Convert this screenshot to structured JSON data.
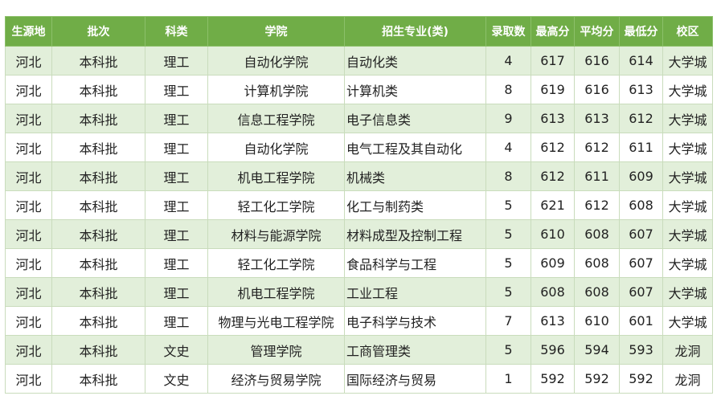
{
  "table": {
    "header": [
      "生源地",
      "批次",
      "科类",
      "学院",
      "招生专业(类)",
      "录取数",
      "最高分",
      "平均分",
      "最低分",
      "校区"
    ],
    "rows": [
      [
        "河北",
        "本科批",
        "理工",
        "自动化学院",
        "自动化类",
        4,
        617,
        616,
        614,
        "大学城"
      ],
      [
        "河北",
        "本科批",
        "理工",
        "计算机学院",
        "计算机类",
        8,
        619,
        616,
        613,
        "大学城"
      ],
      [
        "河北",
        "本科批",
        "理工",
        "信息工程学院",
        "电子信息类",
        9,
        613,
        613,
        612,
        "大学城"
      ],
      [
        "河北",
        "本科批",
        "理工",
        "自动化学院",
        "电气工程及其自动化",
        4,
        612,
        612,
        611,
        "大学城"
      ],
      [
        "河北",
        "本科批",
        "理工",
        "机电工程学院",
        "机械类",
        8,
        612,
        611,
        609,
        "大学城"
      ],
      [
        "河北",
        "本科批",
        "理工",
        "轻工化工学院",
        "化工与制药类",
        5,
        621,
        612,
        608,
        "大学城"
      ],
      [
        "河北",
        "本科批",
        "理工",
        "材料与能源学院",
        "材料成型及控制工程",
        5,
        610,
        608,
        607,
        "大学城"
      ],
      [
        "河北",
        "本科批",
        "理工",
        "轻工化工学院",
        "食品科学与工程",
        5,
        609,
        608,
        607,
        "大学城"
      ],
      [
        "河北",
        "本科批",
        "理工",
        "机电工程学院",
        "工业工程",
        5,
        608,
        608,
        607,
        "大学城"
      ],
      [
        "河北",
        "本科批",
        "理工",
        "物理与光电工程学院",
        "电子科学与技术",
        7,
        613,
        610,
        601,
        "大学城"
      ],
      [
        "河北",
        "本科批",
        "文史",
        "管理学院",
        "工商管理类",
        5,
        596,
        594,
        593,
        "龙洞"
      ],
      [
        "河北",
        "本科批",
        "文史",
        "经济与贸易学院",
        "国际经济与贸易",
        1,
        592,
        592,
        592,
        "龙洞"
      ]
    ]
  }
}
